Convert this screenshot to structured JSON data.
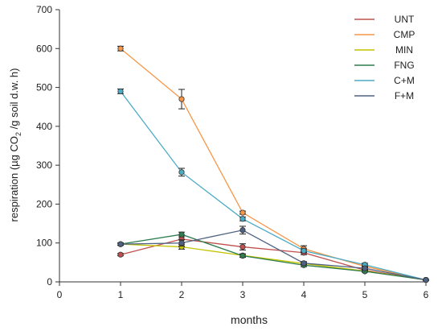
{
  "chart_data": {
    "type": "line",
    "title": "",
    "xlabel": "months",
    "ylabel_main": "respiration (µg CO",
    "ylabel_sub": "2",
    "ylabel_tail": " /g soil d.w. h)",
    "xlim": [
      0,
      6
    ],
    "ylim": [
      0,
      700
    ],
    "x_ticks": [
      "0",
      "1",
      "2",
      "3",
      "4",
      "5",
      "6"
    ],
    "y_ticks": [
      "0",
      "100",
      "200",
      "300",
      "400",
      "500",
      "600",
      "700"
    ],
    "grid": false,
    "legend_position": "top-right",
    "x": [
      1,
      2,
      3,
      4,
      5,
      6
    ],
    "series": [
      {
        "name": "UNT",
        "color": "#c0504d",
        "values": [
          70,
          110,
          90,
          75,
          30,
          5
        ],
        "errors": [
          3,
          10,
          8,
          5,
          3,
          1
        ]
      },
      {
        "name": "CMP",
        "color": "#f79646",
        "values": [
          600,
          470,
          178,
          85,
          40,
          5
        ],
        "errors": [
          6,
          25,
          4,
          8,
          4,
          1
        ]
      },
      {
        "name": "MIN",
        "color": "#c4c400",
        "values": [
          97,
          90,
          68,
          47,
          28,
          5
        ],
        "errors": [
          3,
          6,
          4,
          3,
          3,
          1
        ]
      },
      {
        "name": "FNG",
        "color": "#2e7d4f",
        "values": [
          97,
          122,
          67,
          43,
          27,
          5
        ],
        "errors": [
          3,
          6,
          4,
          4,
          2,
          1
        ]
      },
      {
        "name": "C+M",
        "color": "#4bacc6",
        "values": [
          490,
          282,
          162,
          80,
          44,
          5
        ],
        "errors": [
          6,
          10,
          5,
          5,
          4,
          1
        ]
      },
      {
        "name": "F+M",
        "color": "#4f6281",
        "values": [
          97,
          100,
          133,
          48,
          35,
          5
        ],
        "errors": [
          3,
          8,
          10,
          4,
          3,
          1
        ]
      }
    ]
  }
}
